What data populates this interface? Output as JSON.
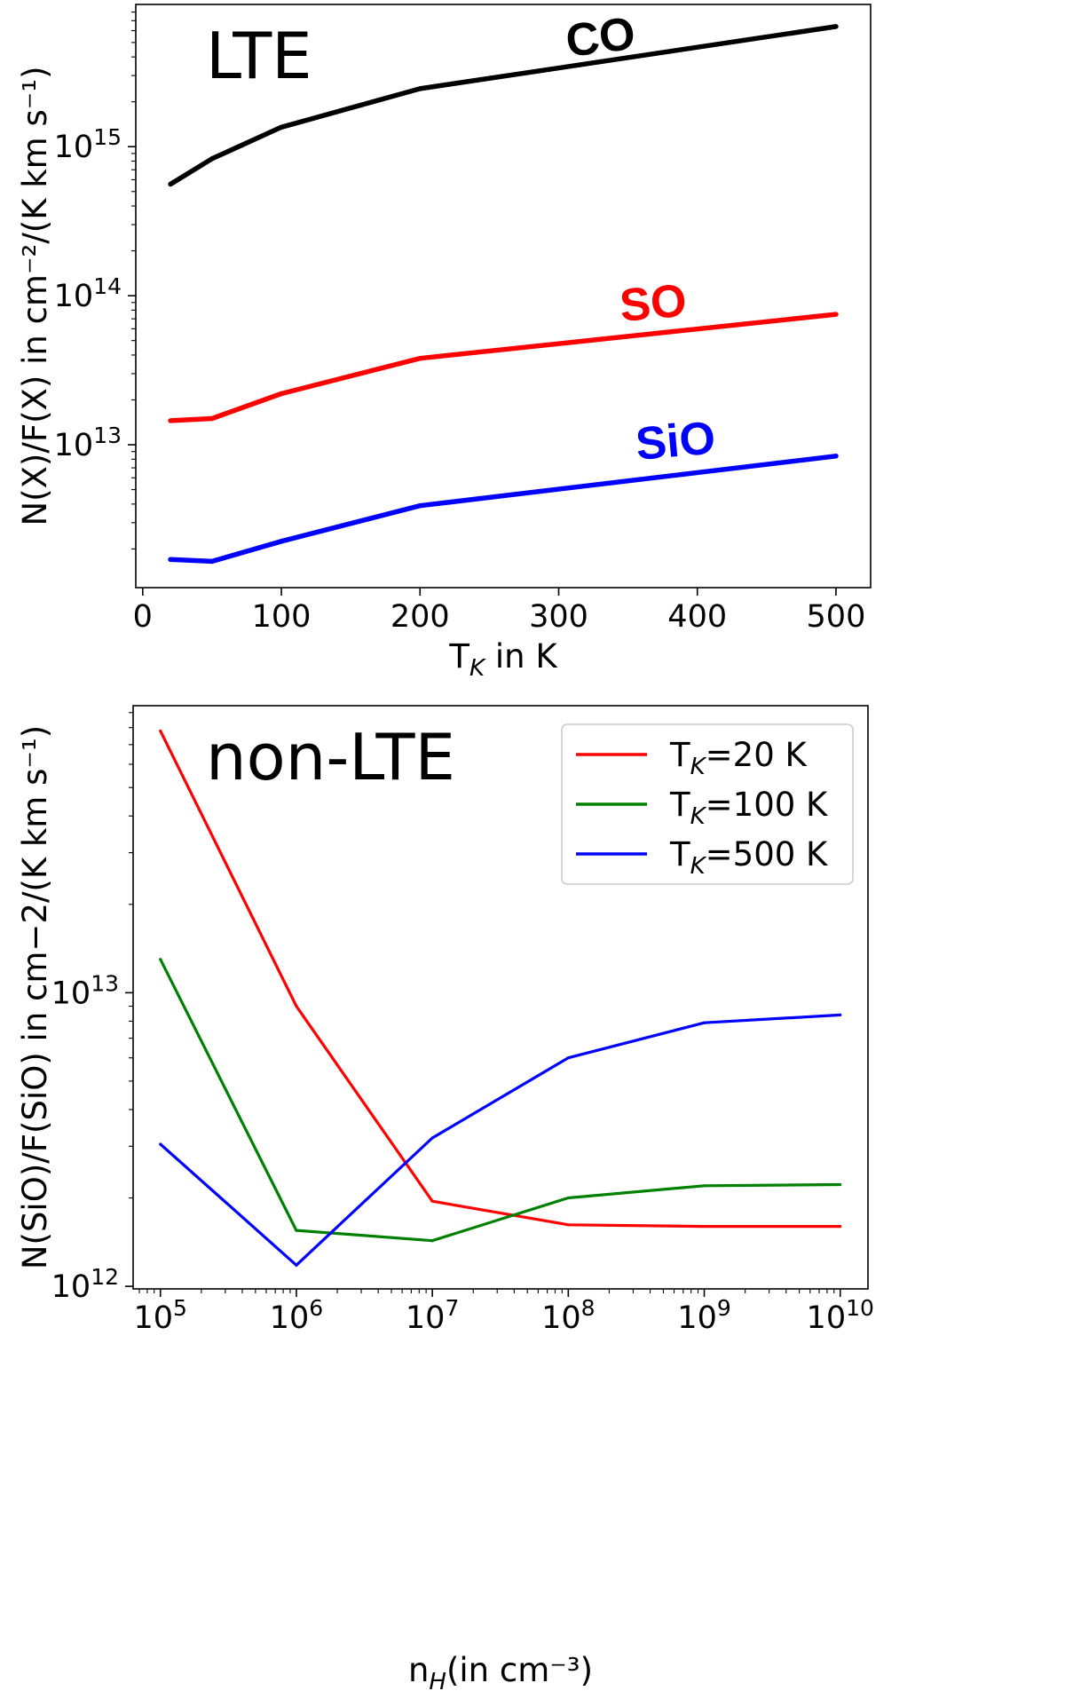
{
  "chart_data": [
    {
      "type": "line",
      "panel_label": "LTE",
      "xlabel_main": "T",
      "xlabel_sub": "K",
      "xlabel_rest": " in K",
      "ylabel": "N(X)/F(X) in cm⁻²/(K km s⁻¹)",
      "xscale": "linear",
      "yscale": "log",
      "xlim": [
        -5,
        525
      ],
      "ylim": [
        1100000000000.0,
        9000000000000000.0
      ],
      "xticks": [
        0,
        100,
        200,
        300,
        400,
        500
      ],
      "xtick_labels": [
        "0",
        "100",
        "200",
        "300",
        "400",
        "500"
      ],
      "yticks": [
        10000000000000.0,
        100000000000000.0,
        1000000000000000.0
      ],
      "ytick_labels": [
        {
          "base": "10",
          "exp": "13"
        },
        {
          "base": "10",
          "exp": "14"
        },
        {
          "base": "10",
          "exp": "15"
        }
      ],
      "x": [
        20,
        50,
        100,
        200,
        500
      ],
      "series": [
        {
          "name": "CO",
          "color": "#000000",
          "values": [
            560000000000000.0,
            830000000000000.0,
            1350000000000000.0,
            2450000000000000.0,
            6400000000000000.0
          ]
        },
        {
          "name": "SO",
          "color": "#ff0000",
          "values": [
            14500000000000.0,
            15000000000000.0,
            22000000000000.0,
            38000000000000.0,
            75000000000000.0
          ]
        },
        {
          "name": "SiO",
          "color": "#0000ff",
          "values": [
            1700000000000.0,
            1650000000000.0,
            2250000000000.0,
            3900000000000.0,
            8400000000000.0
          ]
        }
      ],
      "curve_labels": [
        "CO",
        "SO",
        "SiO"
      ]
    },
    {
      "type": "line",
      "panel_label": "non-LTE",
      "xlabel_main": "n",
      "xlabel_sub": "H",
      "xlabel_rest": "(in cm⁻³)",
      "ylabel": "N(SiO)/F(SiO) in cm−2/(K km s⁻¹)",
      "xscale": "log",
      "yscale": "log",
      "xlim": [
        63000.0,
        16000000000.0
      ],
      "ylim": [
        980000000000.0,
        95000000000000.0
      ],
      "xticks": [
        100000.0,
        1000000.0,
        10000000.0,
        100000000.0,
        1000000000.0,
        10000000000.0
      ],
      "xtick_labels": [
        {
          "base": "10",
          "exp": "5"
        },
        {
          "base": "10",
          "exp": "6"
        },
        {
          "base": "10",
          "exp": "7"
        },
        {
          "base": "10",
          "exp": "8"
        },
        {
          "base": "10",
          "exp": "9"
        },
        {
          "base": "10",
          "exp": "10"
        }
      ],
      "yticks": [
        1000000000000.0,
        10000000000000.0
      ],
      "ytick_labels": [
        {
          "base": "10",
          "exp": "12"
        },
        {
          "base": "10",
          "exp": "13"
        }
      ],
      "x": [
        100000.0,
        1000000.0,
        10000000.0,
        100000000.0,
        1000000000.0,
        10000000000.0
      ],
      "series": [
        {
          "name": "T_K=20 K",
          "legend_main": "T",
          "legend_sub": "K",
          "legend_rest": "=20 K",
          "color": "#ff0000",
          "values": [
            78000000000000.0,
            9000000000000.0,
            1950000000000.0,
            1620000000000.0,
            1600000000000.0,
            1600000000000.0
          ]
        },
        {
          "name": "T_K=100 K",
          "legend_main": "T",
          "legend_sub": "K",
          "legend_rest": "=100 K",
          "color": "#008000",
          "values": [
            13000000000000.0,
            1550000000000.0,
            1430000000000.0,
            2000000000000.0,
            2200000000000.0,
            2220000000000.0
          ]
        },
        {
          "name": "T_K=500 K",
          "legend_main": "T",
          "legend_sub": "K",
          "legend_rest": "=500 K",
          "color": "#0000ff",
          "values": [
            3050000000000.0,
            1180000000000.0,
            3200000000000.0,
            6000000000000.0,
            7900000000000.0,
            8400000000000.0
          ]
        }
      ],
      "legend_position": "top-right"
    }
  ]
}
